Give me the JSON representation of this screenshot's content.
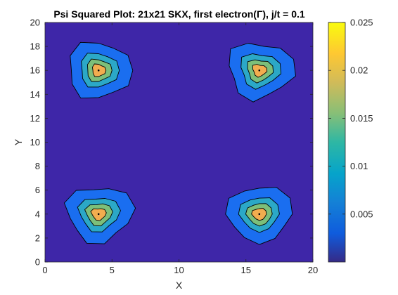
{
  "chart_data": {
    "type": "heatmap",
    "title": "Psi Squared Plot: 21x21 SKX, first electron(Γ), j/t = 0.1",
    "xlabel": "X",
    "ylabel": "Y",
    "xlim": [
      0,
      20
    ],
    "ylim": [
      0,
      20
    ],
    "x_ticks": [
      0,
      5,
      10,
      15,
      20
    ],
    "x_tick_labels": [
      "0",
      "5",
      "10",
      "15",
      "20"
    ],
    "y_ticks": [
      0,
      2,
      4,
      6,
      8,
      10,
      12,
      14,
      16,
      18,
      20
    ],
    "y_tick_labels": [
      "0",
      "2",
      "4",
      "6",
      "8",
      "10",
      "12",
      "14",
      "16",
      "18",
      "20"
    ],
    "colorbar": {
      "range": [
        0,
        0.025
      ],
      "ticks": [
        0.005,
        0.01,
        0.015,
        0.02,
        0.025
      ],
      "tick_labels": [
        "0.005",
        "0.01",
        "0.015",
        "0.02",
        "0.025"
      ],
      "colormap": "parula"
    },
    "contour_levels": [
      0.0025,
      0.0087,
      0.0149,
      0.0211
    ],
    "level_colors": [
      "#3e26a8",
      "#1a6ef0",
      "#2ba8c7",
      "#7cbf7a",
      "#f2ad4f"
    ],
    "peaks": [
      {
        "name": "top-left",
        "x": 4,
        "y": 16,
        "max": 0.024
      },
      {
        "name": "top-right",
        "x": 16,
        "y": 16,
        "max": 0.024
      },
      {
        "name": "bottom-left",
        "x": 4,
        "y": 4,
        "max": 0.024
      },
      {
        "name": "bottom-right",
        "x": 16,
        "y": 4,
        "max": 0.024
      }
    ],
    "grid": false
  }
}
